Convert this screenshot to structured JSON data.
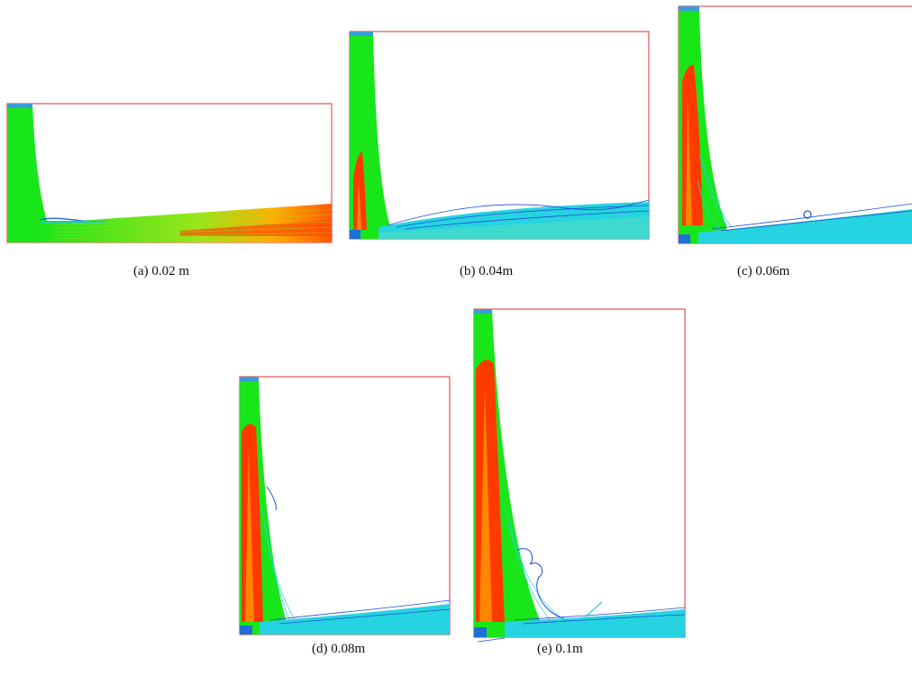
{
  "panels": [
    {
      "id": "a",
      "caption": "(a) 0.02 m"
    },
    {
      "id": "b",
      "caption": "(b) 0.04m"
    },
    {
      "id": "c",
      "caption": "(c) 0.06m"
    },
    {
      "id": "d",
      "caption": "(d) 0.08m"
    },
    {
      "id": "e",
      "caption": "(e) 0.1m"
    }
  ],
  "colors": {
    "frame": "#e23232",
    "jet_green": "#19e619",
    "jet_core": "#ff3a00",
    "jet_inner": "#ff9a00",
    "spread_cyan": "#26d3e0",
    "spread_blue": "#1f4fd6",
    "inlet_blue": "#3b7bd8"
  }
}
